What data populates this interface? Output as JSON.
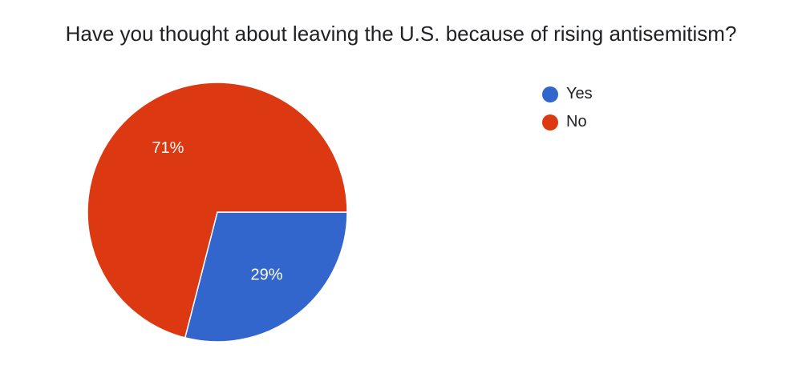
{
  "chart_data": {
    "type": "pie",
    "title": "Have you thought about leaving the U.S. because of rising antisemitism?",
    "slices": [
      {
        "name": "Yes",
        "value": 29,
        "label": "29%",
        "color": "#3366cc"
      },
      {
        "name": "No",
        "value": 71,
        "label": "71%",
        "color": "#dc3912"
      }
    ],
    "legend_position": "right"
  }
}
